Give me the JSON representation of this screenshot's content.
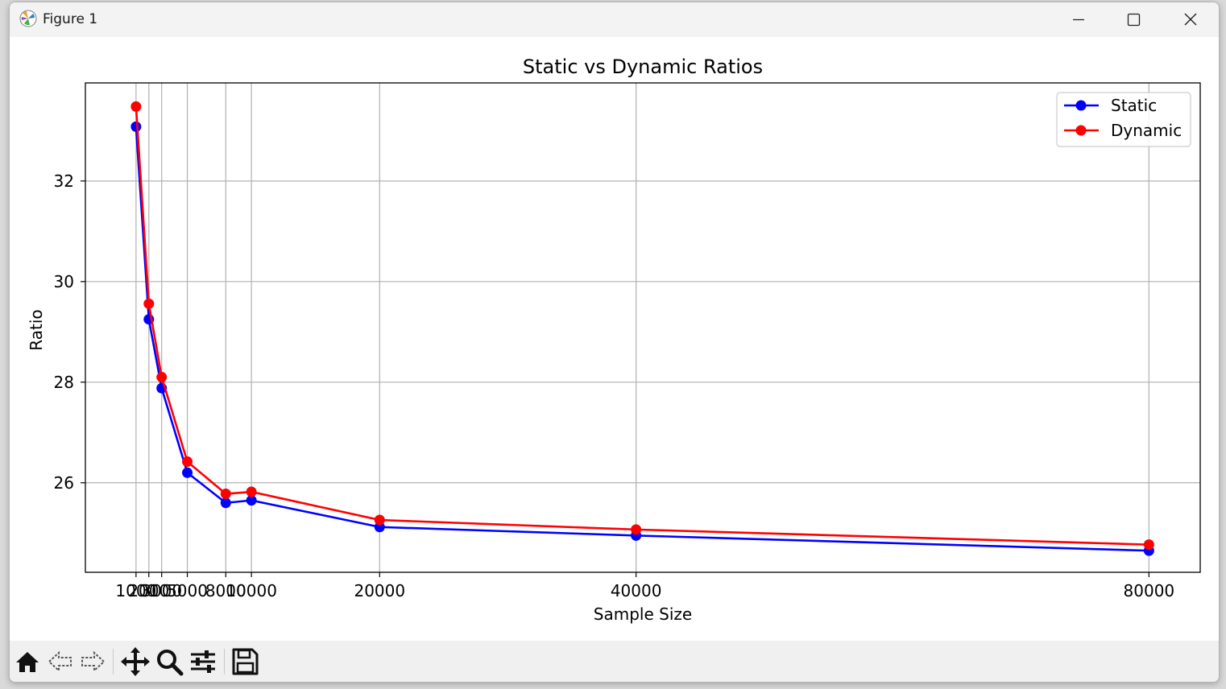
{
  "window": {
    "title": "Figure 1",
    "controls": [
      "minimize",
      "maximize",
      "close"
    ],
    "app_icon": "matplotlib-icon"
  },
  "toolbar": {
    "buttons": [
      {
        "name": "home-button",
        "icon": "home-icon"
      },
      {
        "name": "back-button",
        "icon": "arrow-left-icon"
      },
      {
        "name": "forward-button",
        "icon": "arrow-right-icon"
      },
      {
        "name": "pan-button",
        "icon": "move-icon"
      },
      {
        "name": "zoom-button",
        "icon": "magnifier-icon"
      },
      {
        "name": "configure-subplots-button",
        "icon": "sliders-icon"
      },
      {
        "name": "save-button",
        "icon": "floppy-disk-icon"
      }
    ]
  },
  "chart_data": {
    "type": "line",
    "title": "Static vs Dynamic Ratios",
    "xlabel": "Sample Size",
    "ylabel": "Ratio",
    "x": [
      1000,
      2000,
      3000,
      5000,
      8000,
      10000,
      20000,
      40000,
      80000
    ],
    "xticks": [
      1000,
      2000,
      3000,
      5000,
      8000,
      10000,
      20000,
      40000,
      80000
    ],
    "yticks": [
      26,
      28,
      30,
      32
    ],
    "xlim": [
      -2950,
      84000
    ],
    "ylim": [
      24.22,
      33.95
    ],
    "grid": true,
    "legend_position": "top-right",
    "series": [
      {
        "name": "Static",
        "color": "#0000ff",
        "values": [
          33.08,
          29.25,
          27.88,
          26.2,
          25.6,
          25.65,
          25.12,
          24.95,
          24.65
        ]
      },
      {
        "name": "Dynamic",
        "color": "#ff0000",
        "values": [
          33.48,
          29.56,
          28.1,
          26.42,
          25.78,
          25.82,
          25.26,
          25.07,
          24.77
        ]
      }
    ]
  }
}
